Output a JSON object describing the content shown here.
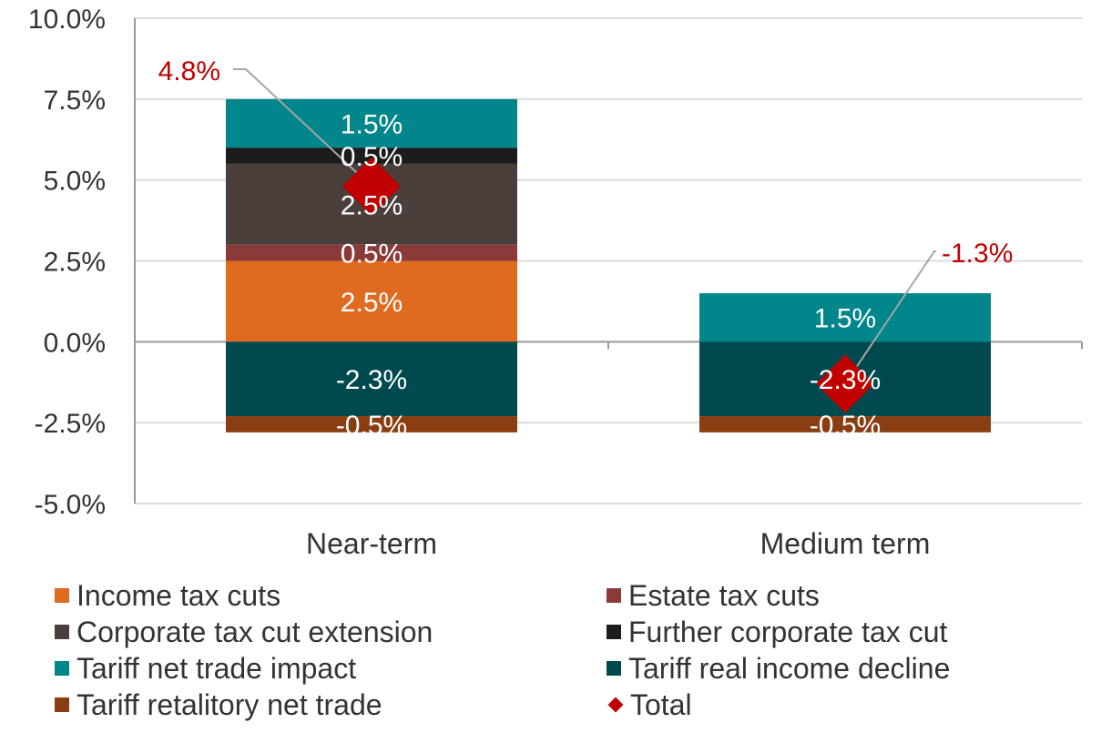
{
  "chart_data": {
    "type": "bar",
    "stacked": true,
    "categories": [
      "Near-term",
      "Medium term"
    ],
    "ylim": [
      -5.0,
      10.0
    ],
    "yticks": [
      "10.0%",
      "7.5%",
      "5.0%",
      "2.5%",
      "0.0%",
      "-2.5%",
      "-5.0%"
    ],
    "ytick_values": [
      10.0,
      7.5,
      5.0,
      2.5,
      0.0,
      -2.5,
      -5.0
    ],
    "grid": true,
    "legend_position": "bottom",
    "series": [
      {
        "name": "Income tax cuts",
        "color": "#e06a1f",
        "values": [
          2.5,
          0.0
        ],
        "labels": [
          "2.5%",
          ""
        ]
      },
      {
        "name": "Estate tax cuts",
        "color": "#8b3a3a",
        "values": [
          0.5,
          0.0
        ],
        "labels": [
          "0.5%",
          ""
        ]
      },
      {
        "name": "Corporate tax cut extension",
        "color": "#4a3f3b",
        "values": [
          2.5,
          0.0
        ],
        "labels": [
          "2.5%",
          ""
        ]
      },
      {
        "name": "Further corporate tax cut",
        "color": "#1c1c1c",
        "values": [
          0.5,
          0.0
        ],
        "labels": [
          "0.5%",
          ""
        ]
      },
      {
        "name": "Tariff net trade impact",
        "color": "#00868b",
        "values": [
          1.5,
          1.5
        ],
        "labels": [
          "1.5%",
          "1.5%"
        ]
      },
      {
        "name": "Tariff real income decline",
        "color": "#004a4f",
        "values": [
          -2.3,
          -2.3
        ],
        "labels": [
          "-2.3%",
          "-2.3%"
        ]
      },
      {
        "name": "Tariff retalitory net trade",
        "color": "#8b3d12",
        "values": [
          -0.5,
          -0.5
        ],
        "labels": [
          "-0.5%",
          "-0.5%"
        ]
      }
    ],
    "total": {
      "name": "Total",
      "color": "#c00000",
      "values": [
        4.8,
        -1.3
      ],
      "labels": [
        "4.8%",
        "-1.3%"
      ]
    }
  }
}
